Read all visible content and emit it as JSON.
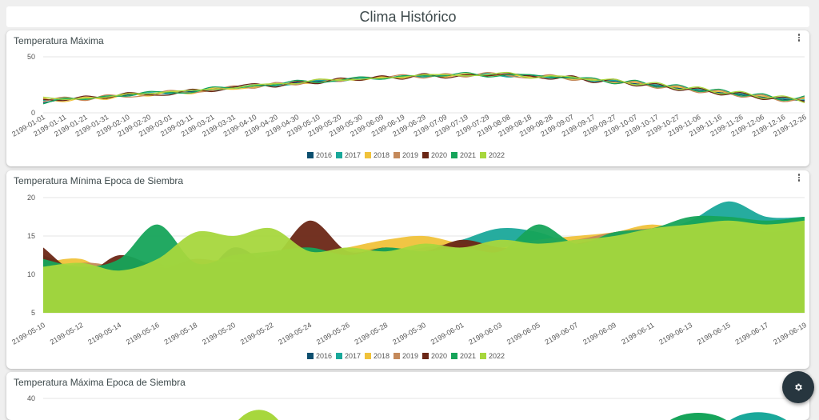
{
  "page": {
    "title": "Clima Histórico"
  },
  "colors": {
    "2016": "#0d4f6f",
    "2017": "#1aa89a",
    "2018": "#f0c23a",
    "2019": "#c4895a",
    "2020": "#6b2716",
    "2021": "#16a45a",
    "2022": "#a7d73d"
  },
  "legend": [
    "2016",
    "2017",
    "2018",
    "2019",
    "2020",
    "2021",
    "2022"
  ],
  "icons": {
    "menu": "more-vert-icon",
    "fab": "gear-icon"
  },
  "chart_data": [
    {
      "type": "line",
      "title": "Temperatura Máxima",
      "xlabel": "",
      "ylabel": "",
      "ylim": [
        0,
        50
      ],
      "yticks": [
        0,
        50
      ],
      "xticks": [
        "2199-01-01",
        "2199-01-11",
        "2199-01-21",
        "2199-01-31",
        "2199-02-10",
        "2199-02-20",
        "2199-03-01",
        "2199-03-11",
        "2199-03-21",
        "2199-03-31",
        "2199-04-10",
        "2199-04-20",
        "2199-04-30",
        "2199-05-10",
        "2199-05-20",
        "2199-05-30",
        "2199-06-09",
        "2199-06-19",
        "2199-06-29",
        "2199-07-09",
        "2199-07-19",
        "2199-07-29",
        "2199-08-08",
        "2199-08-18",
        "2199-08-28",
        "2199-09-07",
        "2199-09-17",
        "2199-09-27",
        "2199-10-07",
        "2199-10-17",
        "2199-10-27",
        "2199-11-06",
        "2199-11-16",
        "2199-11-26",
        "2199-12-06",
        "2199-12-16",
        "2199-12-26"
      ],
      "series": [
        {
          "name": "2016",
          "values": [
            9,
            12,
            13,
            14,
            16,
            17,
            18,
            19,
            21,
            23,
            24,
            25,
            27,
            28,
            29,
            30,
            31,
            32,
            33,
            33,
            34,
            34,
            33,
            33,
            32,
            31,
            29,
            28,
            26,
            24,
            22,
            20,
            18,
            16,
            14,
            12,
            11
          ]
        },
        {
          "name": "2017",
          "values": [
            11,
            13,
            12,
            15,
            15,
            18,
            17,
            20,
            20,
            22,
            25,
            24,
            26,
            29,
            28,
            31,
            30,
            33,
            32,
            34,
            33,
            35,
            32,
            34,
            31,
            32,
            28,
            29,
            25,
            25,
            21,
            21,
            17,
            17,
            13,
            13,
            12
          ]
        },
        {
          "name": "2018",
          "values": [
            13,
            10,
            14,
            12,
            17,
            15,
            19,
            17,
            22,
            21,
            23,
            26,
            26,
            27,
            30,
            29,
            32,
            31,
            34,
            32,
            35,
            33,
            34,
            32,
            33,
            30,
            30,
            27,
            27,
            23,
            23,
            19,
            19,
            15,
            15,
            11,
            13
          ]
        },
        {
          "name": "2019",
          "values": [
            10,
            14,
            11,
            16,
            14,
            16,
            20,
            18,
            20,
            24,
            22,
            27,
            25,
            30,
            28,
            32,
            31,
            34,
            31,
            35,
            32,
            36,
            33,
            31,
            34,
            29,
            31,
            26,
            28,
            22,
            24,
            18,
            20,
            14,
            16,
            10,
            14
          ]
        },
        {
          "name": "2020",
          "values": [
            12,
            11,
            15,
            13,
            18,
            16,
            16,
            21,
            19,
            23,
            26,
            23,
            28,
            26,
            31,
            29,
            33,
            30,
            35,
            31,
            34,
            33,
            35,
            33,
            30,
            33,
            27,
            30,
            24,
            26,
            20,
            22,
            16,
            18,
            12,
            14,
            10
          ]
        },
        {
          "name": "2021",
          "values": [
            8,
            13,
            12,
            15,
            15,
            19,
            18,
            18,
            23,
            22,
            24,
            25,
            29,
            27,
            29,
            32,
            30,
            33,
            33,
            33,
            36,
            32,
            34,
            34,
            32,
            31,
            31,
            26,
            29,
            23,
            25,
            19,
            21,
            15,
            17,
            11,
            15
          ]
        },
        {
          "name": "2022",
          "values": [
            14,
            12,
            13,
            14,
            17,
            17,
            19,
            20,
            21,
            22,
            25,
            26,
            26,
            30,
            29,
            30,
            31,
            32,
            34,
            34,
            33,
            34,
            36,
            31,
            33,
            32,
            29,
            30,
            25,
            27,
            21,
            23,
            17,
            19,
            13,
            15,
            9
          ]
        }
      ],
      "legend_position": "bottom"
    },
    {
      "type": "area",
      "title": "Temperatura Mínima Epoca de Siembra",
      "xlabel": "",
      "ylabel": "",
      "ylim": [
        5,
        20
      ],
      "yticks": [
        5,
        10,
        15,
        20
      ],
      "xticks": [
        "2199-05-10",
        "2199-05-12",
        "2199-05-14",
        "2199-05-16",
        "2199-05-18",
        "2199-05-20",
        "2199-05-22",
        "2199-05-24",
        "2199-05-26",
        "2199-05-28",
        "2199-05-30",
        "2199-06-01",
        "2199-06-03",
        "2199-06-05",
        "2199-06-07",
        "2199-06-09",
        "2199-06-11",
        "2199-06-13",
        "2199-06-15",
        "2199-06-17",
        "2199-06-19"
      ],
      "series": [
        {
          "name": "2016",
          "values": [
            9.5,
            7.0,
            10.5,
            11.5,
            9.0,
            13.5,
            11.0,
            10.0,
            12.5,
            13.5,
            12.0,
            11.5,
            13.0,
            12.5,
            13.0,
            14.0,
            15.5,
            15.0,
            16.0,
            13.0,
            10.0
          ]
        },
        {
          "name": "2017",
          "values": [
            12.5,
            10.5,
            8.0,
            10.0,
            12.0,
            10.5,
            12.5,
            13.5,
            12.0,
            12.5,
            13.0,
            14.5,
            16.0,
            15.5,
            14.0,
            15.5,
            15.5,
            17.0,
            19.5,
            17.5,
            17.5
          ]
        },
        {
          "name": "2018",
          "values": [
            11.5,
            12.0,
            9.5,
            11.0,
            11.5,
            12.0,
            11.0,
            12.5,
            13.5,
            14.5,
            15.0,
            14.0,
            13.5,
            14.5,
            15.0,
            15.5,
            16.5,
            15.5,
            15.0,
            16.5,
            15.0
          ]
        },
        {
          "name": "2019",
          "values": [
            10.0,
            11.5,
            11.0,
            10.5,
            12.0,
            11.5,
            12.5,
            12.0,
            13.0,
            12.5,
            13.5,
            14.0,
            13.0,
            14.0,
            14.5,
            15.5,
            16.0,
            16.0,
            15.5,
            15.0,
            15.5
          ]
        },
        {
          "name": "2020",
          "values": [
            13.5,
            10.0,
            12.5,
            11.0,
            10.5,
            11.5,
            12.0,
            17.0,
            13.0,
            13.5,
            13.0,
            14.5,
            13.5,
            13.5,
            14.0,
            15.0,
            15.5,
            16.0,
            16.5,
            15.5,
            16.0
          ]
        },
        {
          "name": "2021",
          "values": [
            12.0,
            11.0,
            12.0,
            16.5,
            11.5,
            12.5,
            13.0,
            13.5,
            12.5,
            13.5,
            13.0,
            13.5,
            13.0,
            16.5,
            14.0,
            15.5,
            16.0,
            17.5,
            17.5,
            17.0,
            17.5
          ]
        },
        {
          "name": "2022",
          "values": [
            11.0,
            11.5,
            10.5,
            12.0,
            15.5,
            15.0,
            16.0,
            13.0,
            13.5,
            13.0,
            14.0,
            13.5,
            14.5,
            14.0,
            14.5,
            15.0,
            16.0,
            16.5,
            17.0,
            16.5,
            17.0
          ]
        }
      ],
      "legend_position": "bottom"
    },
    {
      "type": "area",
      "title": "Temperatura Máxima Epoca de Siembra",
      "xlabel": "",
      "ylabel": "",
      "ylim": [
        0,
        40
      ],
      "yticks": [
        40
      ],
      "series": []
    }
  ]
}
